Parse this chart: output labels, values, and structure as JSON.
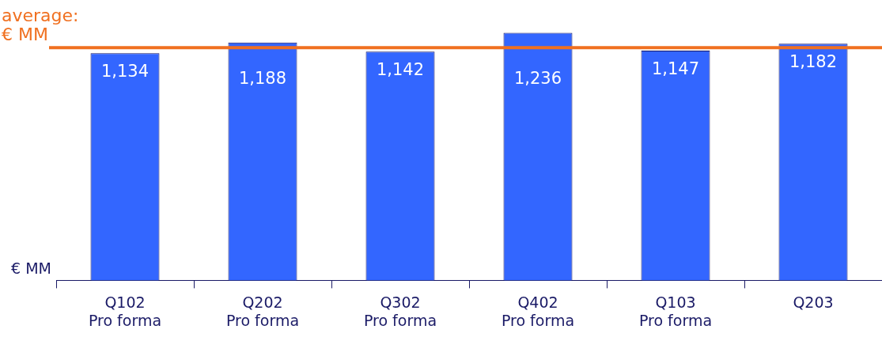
{
  "chart_data": {
    "type": "bar",
    "categories": [
      "Q102\nPro forma",
      "Q202\nPro forma",
      "Q302\nPro forma",
      "Q402\nPro forma",
      "Q103\nPro forma",
      "Q203"
    ],
    "values": [
      1134,
      1188,
      1142,
      1236,
      1147,
      1182
    ],
    "color": "#3366ff",
    "value_labels": [
      "1,134",
      "1,188",
      "1,142",
      "1,236",
      "1,147",
      "1,182"
    ],
    "ylabel": "€ MM",
    "ref_lines": [
      {
        "axis": "y",
        "value": 1162,
        "label": "average:\n€ MM",
        "color": "#f07020"
      }
    ]
  }
}
